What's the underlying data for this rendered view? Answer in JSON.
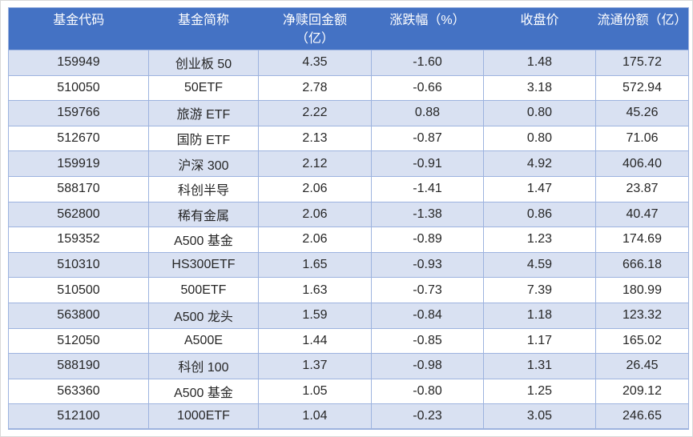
{
  "table": {
    "columns": [
      {
        "label": "基金代码"
      },
      {
        "label": "基金简称"
      },
      {
        "label": "净赎回金额\n（亿）"
      },
      {
        "label": "涨跌幅（%）"
      },
      {
        "label": "收盘价"
      },
      {
        "label": "流通份额（亿）"
      }
    ],
    "rows": [
      [
        "159949",
        "创业板 50",
        "4.35",
        "-1.60",
        "1.48",
        "175.72"
      ],
      [
        "510050",
        "50ETF",
        "2.78",
        "-0.66",
        "3.18",
        "572.94"
      ],
      [
        "159766",
        "旅游 ETF",
        "2.22",
        "0.88",
        "0.80",
        "45.26"
      ],
      [
        "512670",
        "国防 ETF",
        "2.13",
        "-0.87",
        "0.80",
        "71.06"
      ],
      [
        "159919",
        "沪深 300",
        "2.12",
        "-0.91",
        "4.92",
        "406.40"
      ],
      [
        "588170",
        "科创半导",
        "2.06",
        "-1.41",
        "1.47",
        "23.87"
      ],
      [
        "562800",
        "稀有金属",
        "2.06",
        "-1.38",
        "0.86",
        "40.47"
      ],
      [
        "159352",
        "A500 基金",
        "2.06",
        "-0.89",
        "1.23",
        "174.69"
      ],
      [
        "510310",
        "HS300ETF",
        "1.65",
        "-0.93",
        "4.59",
        "666.18"
      ],
      [
        "510500",
        "500ETF",
        "1.63",
        "-0.73",
        "7.39",
        "180.99"
      ],
      [
        "563800",
        "A500 龙头",
        "1.59",
        "-0.84",
        "1.18",
        "123.32"
      ],
      [
        "512050",
        "A500E",
        "1.44",
        "-0.85",
        "1.17",
        "165.02"
      ],
      [
        "588190",
        "科创 100",
        "1.37",
        "-0.98",
        "1.31",
        "26.45"
      ],
      [
        "563360",
        "A500 基金",
        "1.05",
        "-0.80",
        "1.25",
        "209.12"
      ],
      [
        "512100",
        "1000ETF",
        "1.04",
        "-0.23",
        "3.05",
        "246.65"
      ]
    ],
    "colors": {
      "header_bg": "#4472C4",
      "header_text": "#FFFFFF",
      "band_row_bg": "#D9E1F2",
      "plain_row_bg": "#FFFFFF",
      "border": "#9DB3DF",
      "text": "#262626"
    }
  }
}
